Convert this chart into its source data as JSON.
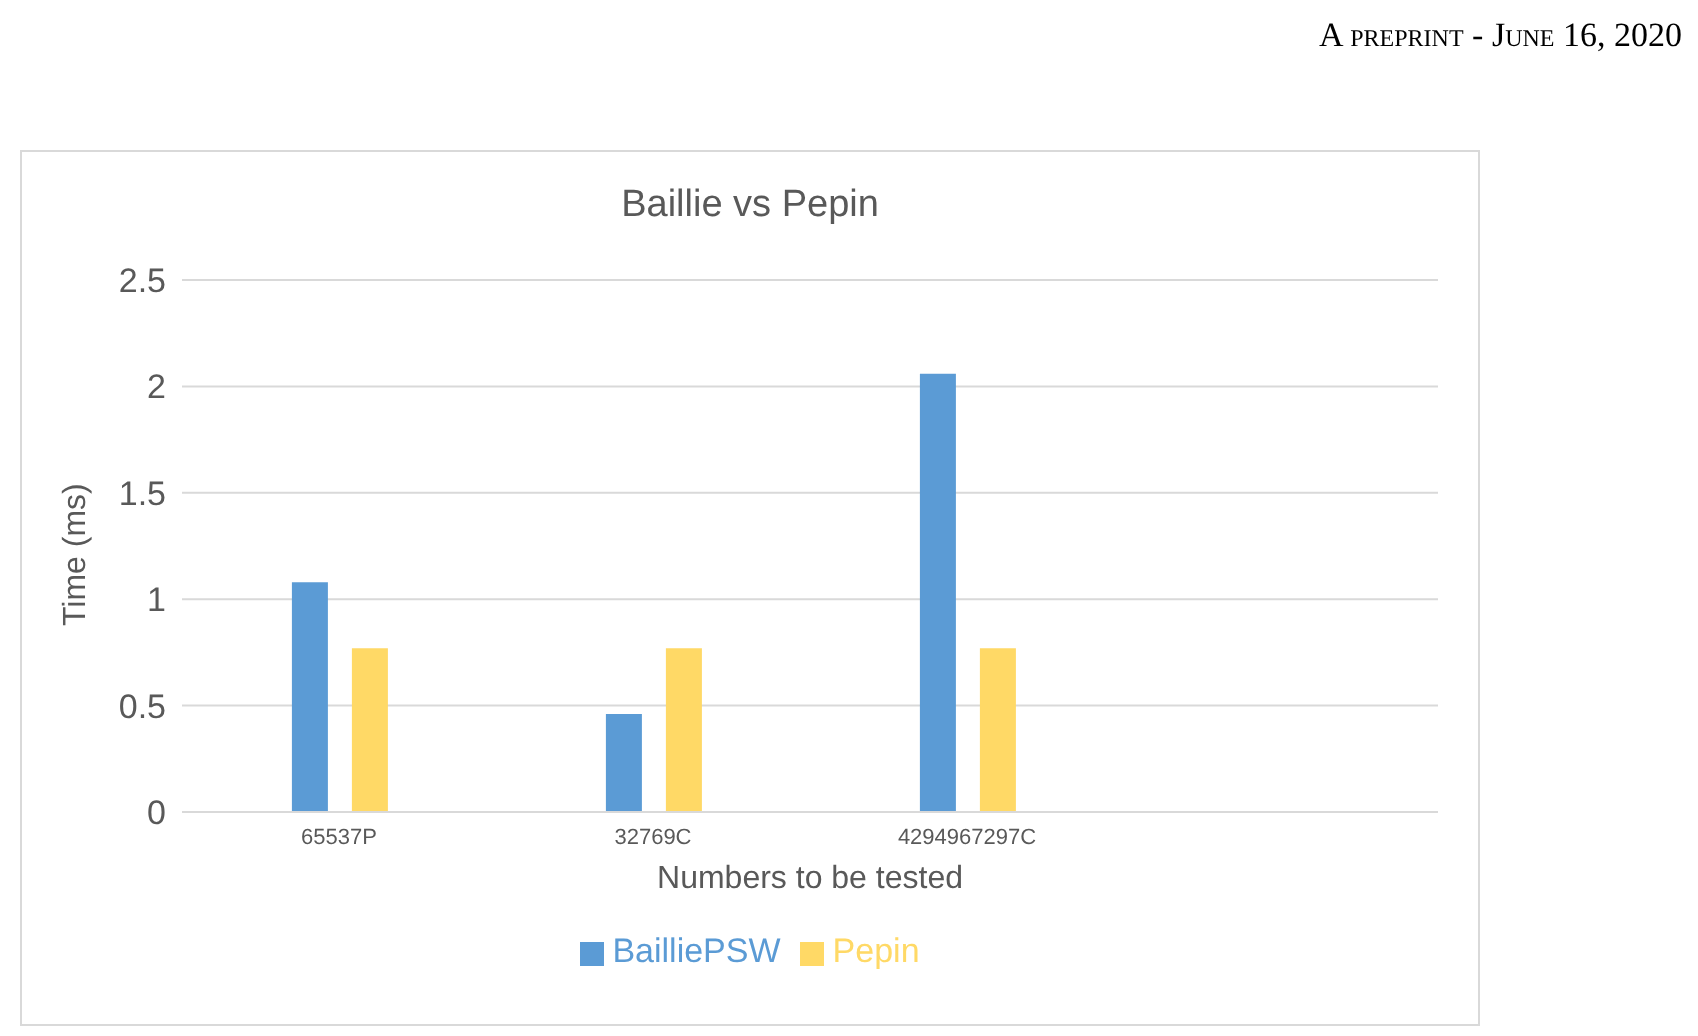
{
  "chart_data": {
    "type": "bar",
    "title": "Baillie vs Pepin",
    "xlabel": "Numbers to be tested",
    "ylabel": "Time (ms)",
    "categories": [
      "65537P",
      "32769C",
      "4294967297C",
      null
    ],
    "series": [
      {
        "name": "BailliePSW",
        "color": "#5b9bd5",
        "values": [
          1.08,
          0.46,
          2.06,
          null
        ]
      },
      {
        "name": "Pepin",
        "color": "#ffd966",
        "values": [
          0.77,
          0.77,
          0.77,
          null
        ]
      }
    ],
    "ylim": [
      0,
      2.5
    ],
    "yticks": [
      0,
      0.5,
      1,
      1.5,
      2,
      2.5
    ],
    "grid": "y",
    "legend": "bottom",
    "annotations": [
      "A preprint - June 16, 2020"
    ]
  }
}
